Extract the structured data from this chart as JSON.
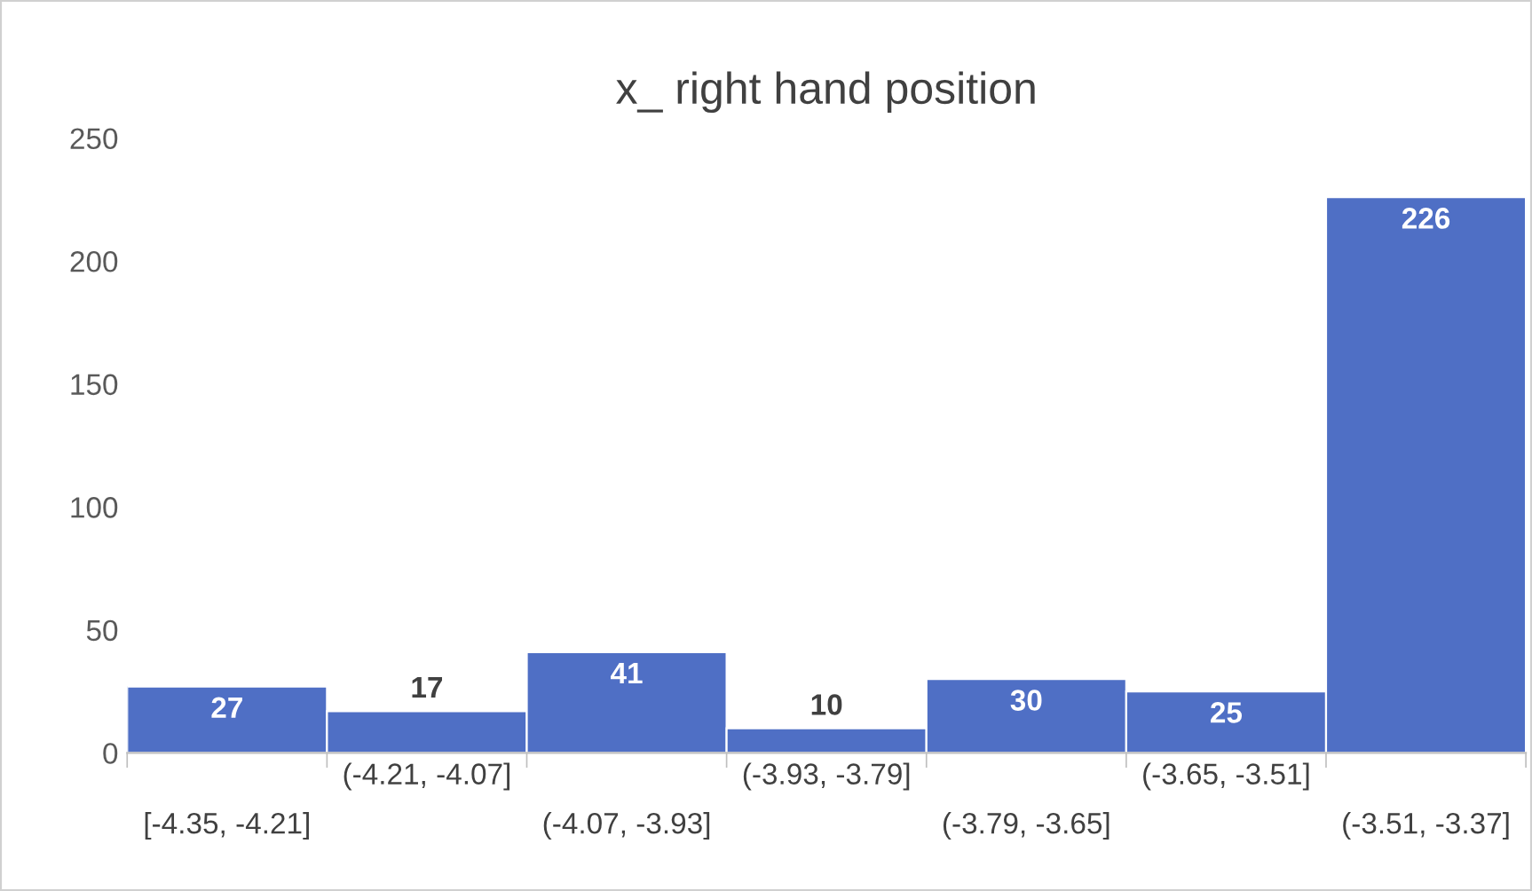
{
  "chart_data": {
    "type": "bar",
    "title": "x_ right hand position",
    "categories": [
      "[-4.35, -4.21]",
      "(-4.21, -4.07]",
      "(-4.07, -3.93]",
      "(-3.93, -3.79]",
      "(-3.79, -3.65]",
      "(-3.65, -3.51]",
      "(-3.51, -3.37]"
    ],
    "values": [
      27,
      17,
      41,
      10,
      30,
      25,
      226
    ],
    "color": "#4f6fc5",
    "ylim": [
      0,
      250
    ],
    "yticks": [
      0,
      50,
      100,
      150,
      200,
      250
    ],
    "data_labels": true
  }
}
